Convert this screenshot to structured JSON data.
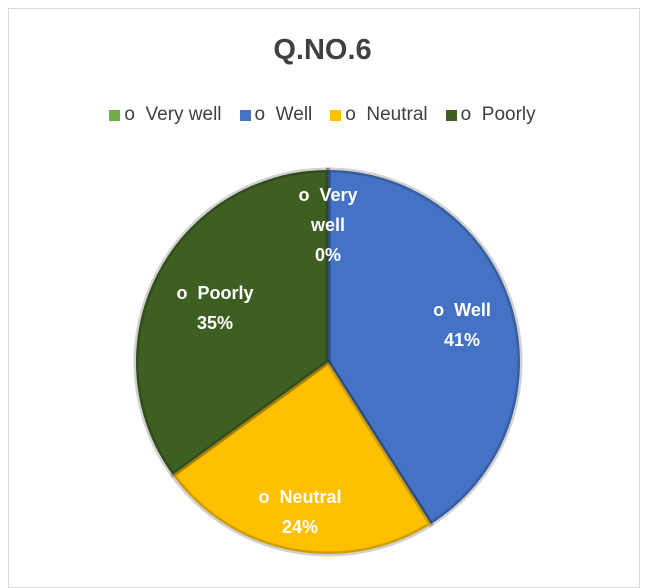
{
  "chart_data": {
    "type": "pie",
    "title": "Q.NO.6",
    "categories": [
      "o  Very well",
      "o  Well",
      "o  Neutral",
      "o  Poorly"
    ],
    "values": [
      0,
      41,
      24,
      35
    ],
    "value_labels": [
      "0%",
      "41%",
      "24%",
      "35%"
    ],
    "colors": [
      "#70ad47",
      "#4472c4",
      "#ffc000",
      "#3d5f22"
    ],
    "legend": "top"
  }
}
